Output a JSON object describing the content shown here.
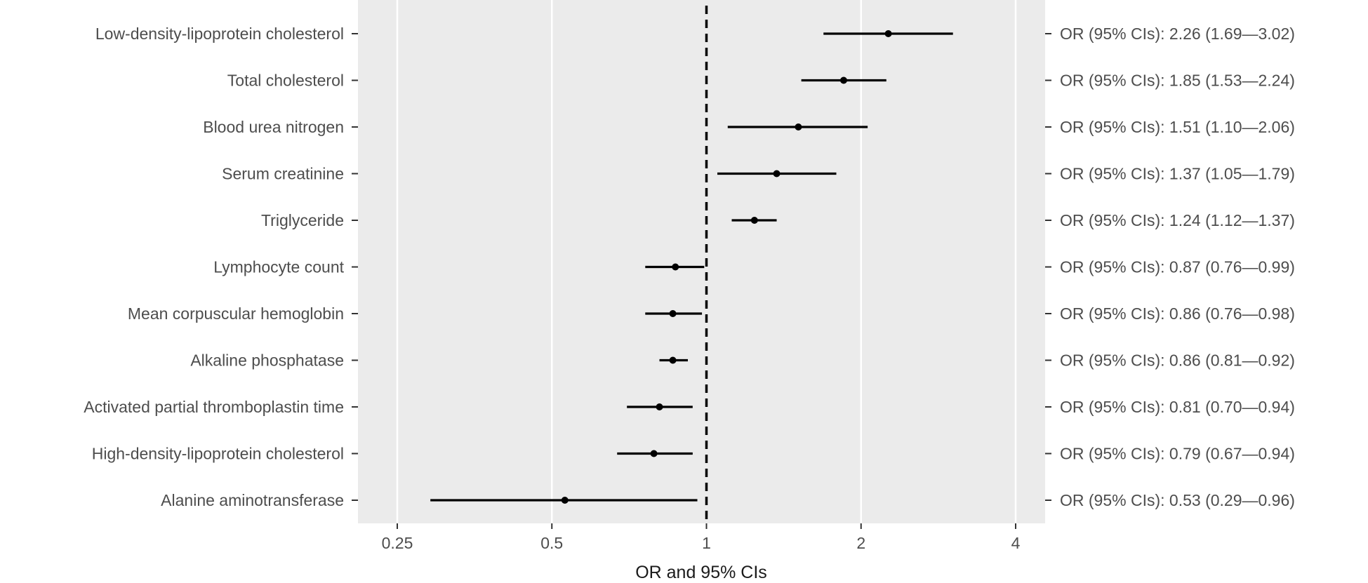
{
  "chart_data": {
    "type": "forest",
    "xlabel": "OR and 95% CIs",
    "x_scale": "log2",
    "xlim": [
      0.2,
      4.6
    ],
    "x_ticks": [
      {
        "value": 0.25,
        "label": "0.25"
      },
      {
        "value": 0.5,
        "label": "0.5"
      },
      {
        "value": 1,
        "label": "1"
      },
      {
        "value": 2,
        "label": "2"
      },
      {
        "value": 4,
        "label": "4"
      }
    ],
    "reference_line": 1,
    "grid": true,
    "rows": [
      {
        "name": "Low-density-lipoprotein cholesterol",
        "or": 2.26,
        "lo": 1.69,
        "hi": 3.02,
        "label": "OR (95% CIs): 2.26 (1.69—3.02)"
      },
      {
        "name": "Total cholesterol",
        "or": 1.85,
        "lo": 1.53,
        "hi": 2.24,
        "label": "OR (95% CIs): 1.85 (1.53—2.24)"
      },
      {
        "name": "Blood urea nitrogen",
        "or": 1.51,
        "lo": 1.1,
        "hi": 2.06,
        "label": "OR (95% CIs): 1.51 (1.10—2.06)"
      },
      {
        "name": "Serum creatinine",
        "or": 1.37,
        "lo": 1.05,
        "hi": 1.79,
        "label": "OR (95% CIs): 1.37 (1.05—1.79)"
      },
      {
        "name": "Triglyceride",
        "or": 1.24,
        "lo": 1.12,
        "hi": 1.37,
        "label": "OR (95% CIs): 1.24 (1.12—1.37)"
      },
      {
        "name": "Lymphocyte count",
        "or": 0.87,
        "lo": 0.76,
        "hi": 0.99,
        "label": "OR (95% CIs): 0.87 (0.76—0.99)"
      },
      {
        "name": "Mean corpuscular hemoglobin",
        "or": 0.86,
        "lo": 0.76,
        "hi": 0.98,
        "label": "OR (95% CIs): 0.86 (0.76—0.98)"
      },
      {
        "name": "Alkaline phosphatase",
        "or": 0.86,
        "lo": 0.81,
        "hi": 0.92,
        "label": "OR (95% CIs): 0.86 (0.81—0.92)"
      },
      {
        "name": "Activated partial thromboplastin time",
        "or": 0.81,
        "lo": 0.7,
        "hi": 0.94,
        "label": "OR (95% CIs): 0.81 (0.70—0.94)"
      },
      {
        "name": "High-density-lipoprotein cholesterol",
        "or": 0.79,
        "lo": 0.67,
        "hi": 0.94,
        "label": "OR (95% CIs): 0.79 (0.67—0.94)"
      },
      {
        "name": "Alanine aminotransferase",
        "or": 0.53,
        "lo": 0.29,
        "hi": 0.96,
        "label": "OR (95% CIs): 0.53 (0.29—0.96)"
      }
    ]
  }
}
